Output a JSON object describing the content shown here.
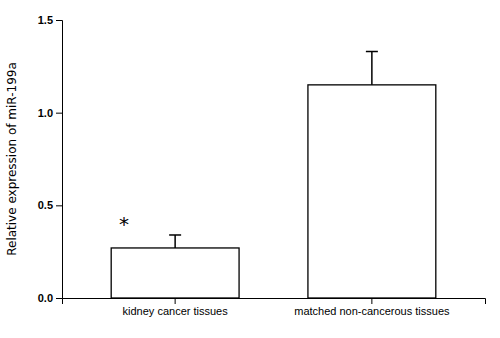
{
  "chart_data": {
    "type": "bar",
    "categories": [
      "kidney cancer tissues",
      "matched non-cancerous tissues"
    ],
    "values": [
      0.27,
      1.15
    ],
    "errors": [
      0.07,
      0.18
    ],
    "colors": [
      "#ffffff",
      "#ffffff"
    ],
    "y_label": "Relative expression of miR-199a",
    "ylim": [
      0.0,
      1.5
    ],
    "yticks": [
      {
        "value": 0,
        "label": "0.0"
      },
      0.5,
      {
        "value": 1,
        "label": "1.0"
      },
      1.5
    ],
    "annotations": [
      {
        "text": "*",
        "category": "kidney cancer tissues"
      }
    ],
    "grid": false
  }
}
